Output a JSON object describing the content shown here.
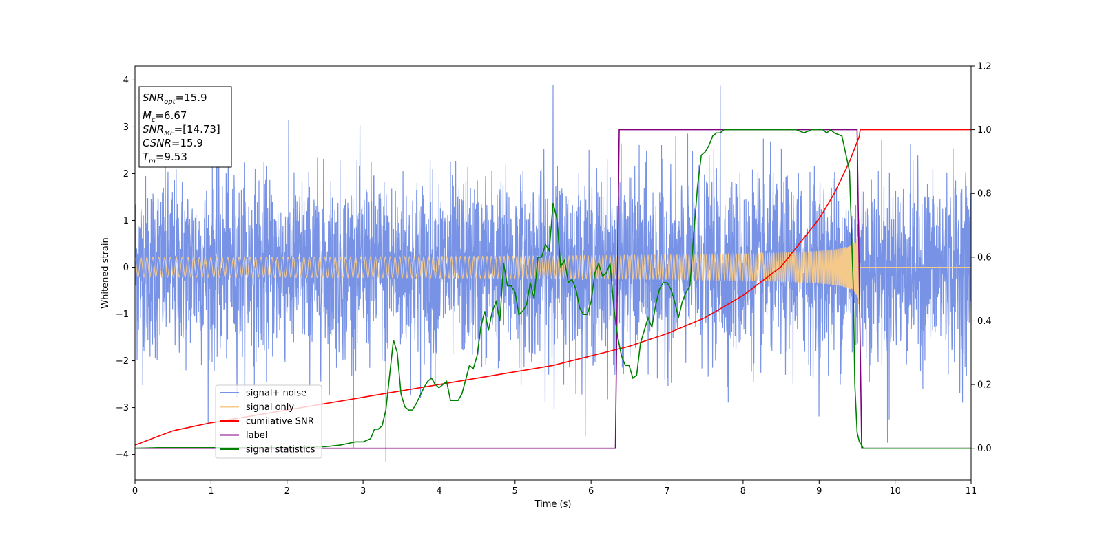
{
  "chart_data": {
    "type": "line",
    "xlabel": "Time (s)",
    "ylabel": "Whitened strain",
    "xlim": [
      0,
      11
    ],
    "ylim": [
      -4.55,
      4.3
    ],
    "y2lim": [
      -0.1,
      1.2
    ],
    "xticks": [
      0,
      1,
      2,
      3,
      4,
      5,
      6,
      7,
      8,
      9,
      10,
      11
    ],
    "yticks": [
      -4,
      -3,
      -2,
      -1,
      0,
      1,
      2,
      3,
      4
    ],
    "y2ticks": [
      0.0,
      0.2,
      0.4,
      0.6,
      0.8,
      1.0,
      1.2
    ],
    "xtick_labels": [
      "0",
      "1",
      "2",
      "3",
      "4",
      "5",
      "6",
      "7",
      "8",
      "9",
      "10",
      "11"
    ],
    "ytick_labels": [
      "−4",
      "−3",
      "−2",
      "−1",
      "0",
      "1",
      "2",
      "3",
      "4"
    ],
    "y2tick_labels": [
      "0.0",
      "0.2",
      "0.4",
      "0.6",
      "0.8",
      "1.0",
      "1.2"
    ],
    "grid": false,
    "legend_position": "lower-left",
    "info_box": {
      "lines": [
        {
          "id": "snr_opt",
          "var": "SNR",
          "sub": "opt",
          "value": "=15.9"
        },
        {
          "id": "mc",
          "var": "M",
          "sub": "c",
          "value": "=6.67"
        },
        {
          "id": "snr_mf",
          "var": "SNR",
          "sub": "MF",
          "value": "=[14.73]"
        },
        {
          "id": "csnr",
          "var": "CSNR",
          "sub": "",
          "value": "=15.9"
        },
        {
          "id": "tm",
          "var": "T",
          "sub": "m",
          "value": "=9.53"
        }
      ]
    },
    "series": [
      {
        "name": "signal+ noise",
        "axis": "left",
        "color": "#7893e6",
        "kind": "noise",
        "typical_abs_max": 2.5,
        "peak_values": [
          3.85,
          -4.15,
          3.9,
          3.88,
          -3.75
        ]
      },
      {
        "name": "signal only",
        "axis": "left",
        "color": "#f5c98a",
        "kind": "chirp",
        "merger_time": 9.53,
        "peak_amplitude": 1.0
      },
      {
        "name": "cumilative SNR",
        "axis": "right",
        "color": "#ff0000",
        "x": [
          0,
          0.5,
          1,
          1.5,
          2,
          2.5,
          3,
          3.5,
          4,
          4.5,
          5,
          5.5,
          6,
          6.5,
          7,
          7.5,
          8,
          8.5,
          9,
          9.2,
          9.4,
          9.53,
          9.54,
          11
        ],
        "y": [
          0.01,
          0.055,
          0.08,
          0.1,
          0.12,
          0.14,
          0.16,
          0.18,
          0.2,
          0.22,
          0.24,
          0.26,
          0.29,
          0.32,
          0.36,
          0.41,
          0.48,
          0.57,
          0.72,
          0.8,
          0.9,
          0.98,
          1.0,
          1.0
        ]
      },
      {
        "name": "label",
        "axis": "right",
        "color": "#800080",
        "x": [
          0,
          6.32,
          6.37,
          9.5,
          9.56,
          11
        ],
        "y": [
          0,
          0,
          1,
          1,
          0,
          0
        ]
      },
      {
        "name": "signal statistics",
        "axis": "right",
        "color": "#008000",
        "x": [
          0,
          0.3,
          1,
          1.5,
          2,
          2.5,
          2.7,
          2.9,
          3.0,
          3.1,
          3.15,
          3.2,
          3.25,
          3.3,
          3.35,
          3.4,
          3.45,
          3.5,
          3.55,
          3.6,
          3.65,
          3.7,
          3.8,
          3.85,
          3.9,
          3.95,
          4.0,
          4.05,
          4.1,
          4.15,
          4.2,
          4.25,
          4.3,
          4.4,
          4.45,
          4.5,
          4.55,
          4.6,
          4.65,
          4.7,
          4.75,
          4.8,
          4.85,
          4.9,
          4.95,
          5.0,
          5.05,
          5.1,
          5.15,
          5.2,
          5.25,
          5.3,
          5.35,
          5.4,
          5.45,
          5.5,
          5.55,
          5.6,
          5.65,
          5.7,
          5.75,
          5.8,
          5.85,
          5.9,
          5.95,
          6.0,
          6.05,
          6.1,
          6.15,
          6.2,
          6.25,
          6.3,
          6.35,
          6.4,
          6.45,
          6.5,
          6.55,
          6.6,
          6.65,
          6.7,
          6.75,
          6.8,
          6.85,
          6.9,
          6.95,
          7.0,
          7.05,
          7.1,
          7.15,
          7.2,
          7.25,
          7.3,
          7.35,
          7.4,
          7.45,
          7.5,
          7.55,
          7.6,
          7.65,
          7.7,
          7.75,
          7.8,
          7.85,
          7.9,
          8.0,
          8.1,
          8.2,
          8.3,
          8.4,
          8.5,
          8.6,
          8.7,
          8.8,
          8.9,
          9.0,
          9.05,
          9.1,
          9.15,
          9.2,
          9.3,
          9.4,
          9.45,
          9.47,
          9.5,
          9.53,
          9.56,
          9.58,
          9.6,
          9.7,
          11
        ],
        "y": [
          0.0,
          0.002,
          0.002,
          0.002,
          0.002,
          0.005,
          0.01,
          0.02,
          0.02,
          0.03,
          0.06,
          0.06,
          0.07,
          0.12,
          0.23,
          0.34,
          0.3,
          0.17,
          0.13,
          0.12,
          0.12,
          0.14,
          0.19,
          0.21,
          0.22,
          0.2,
          0.19,
          0.2,
          0.21,
          0.15,
          0.15,
          0.15,
          0.17,
          0.26,
          0.25,
          0.29,
          0.38,
          0.43,
          0.37,
          0.43,
          0.46,
          0.4,
          0.58,
          0.51,
          0.51,
          0.49,
          0.42,
          0.43,
          0.45,
          0.52,
          0.47,
          0.6,
          0.6,
          0.64,
          0.62,
          0.77,
          0.72,
          0.57,
          0.59,
          0.52,
          0.53,
          0.5,
          0.44,
          0.42,
          0.42,
          0.46,
          0.55,
          0.58,
          0.54,
          0.55,
          0.58,
          0.44,
          0.35,
          0.29,
          0.26,
          0.26,
          0.22,
          0.23,
          0.33,
          0.37,
          0.41,
          0.38,
          0.45,
          0.5,
          0.52,
          0.52,
          0.5,
          0.46,
          0.41,
          0.46,
          0.49,
          0.51,
          0.67,
          0.82,
          0.92,
          0.93,
          0.95,
          0.98,
          0.99,
          0.99,
          1.0,
          1.0,
          1.0,
          1.0,
          1.0,
          1.0,
          1.0,
          1.0,
          1.0,
          1.0,
          1.0,
          1.0,
          0.99,
          1.0,
          1.0,
          1.0,
          0.99,
          1.0,
          0.99,
          0.98,
          0.87,
          0.5,
          0.2,
          0.05,
          0.02,
          0.01,
          0.0,
          0.0,
          0.0,
          0.0
        ]
      }
    ]
  }
}
